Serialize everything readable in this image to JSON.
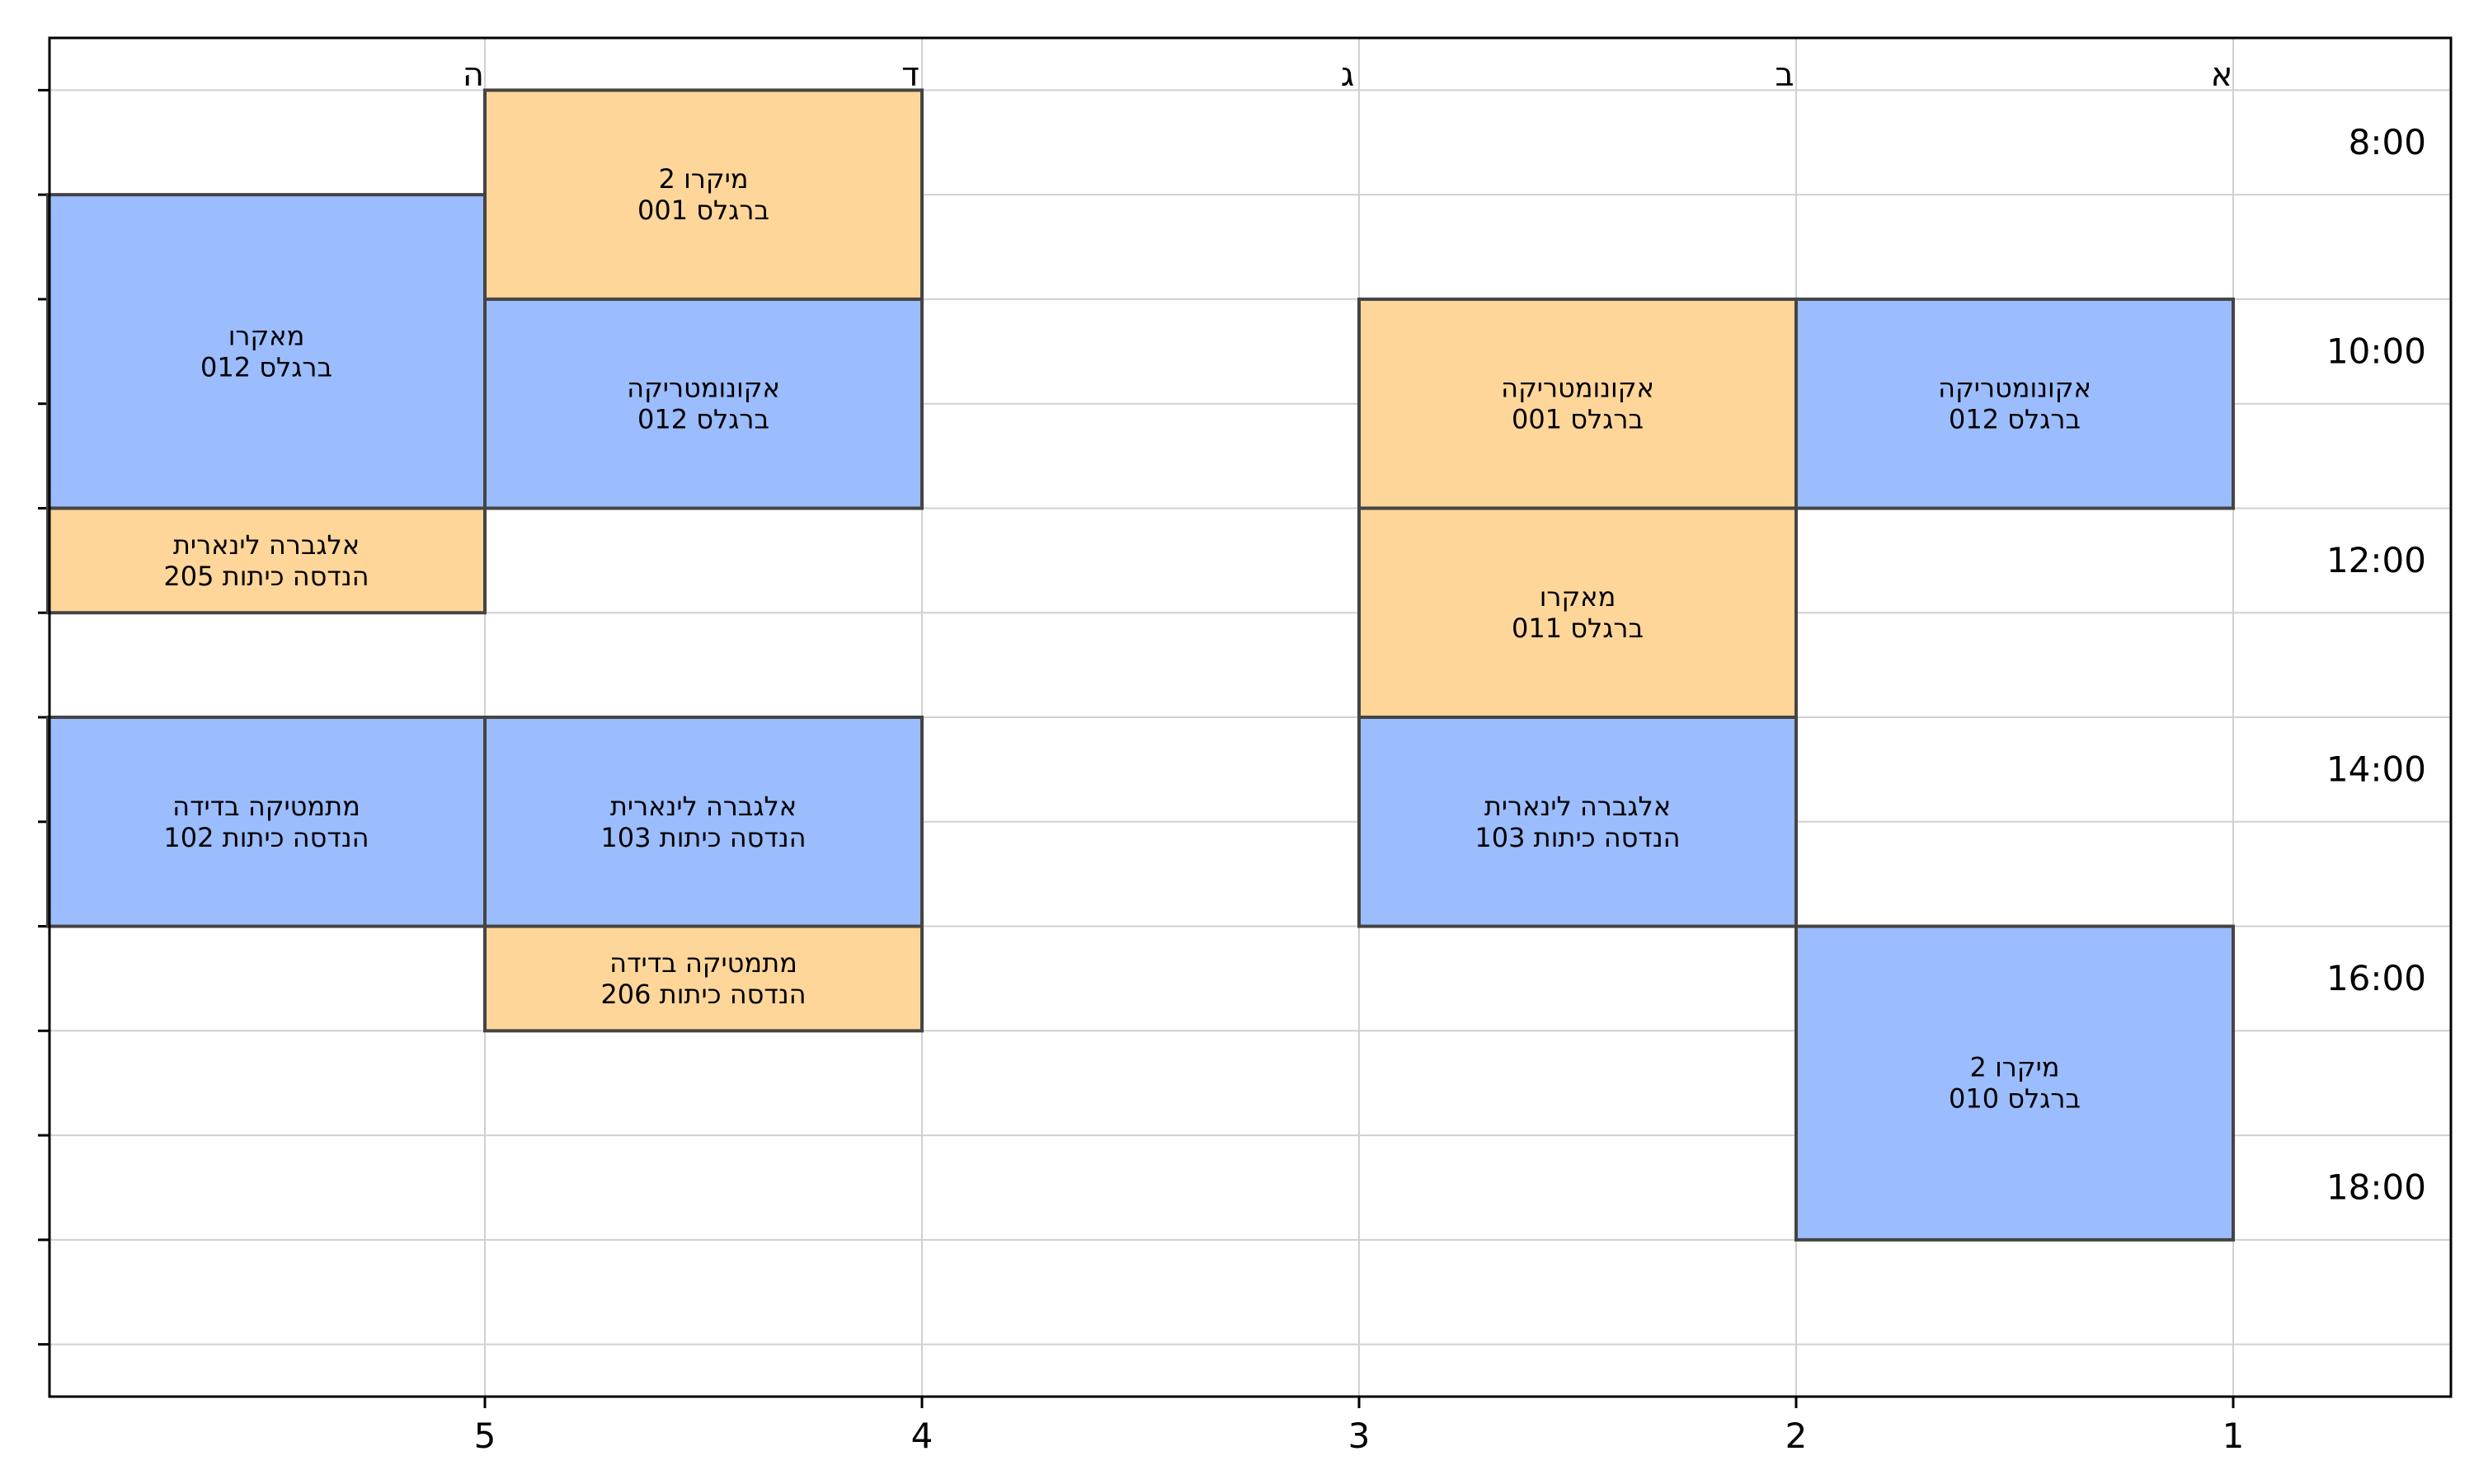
{
  "chart_data": {
    "type": "timetable",
    "day_headers": [
      "א",
      "ב",
      "ג",
      "ד",
      "ה"
    ],
    "x_ticks": [
      1,
      2,
      3,
      4,
      5
    ],
    "time_ticks": [
      "8:00",
      "10:00",
      "12:00",
      "14:00",
      "16:00",
      "18:00"
    ],
    "hour_range": [
      7.5,
      20.5
    ],
    "grid": true,
    "colors": {
      "blue": "#9bbcfd",
      "orange": "#fed699"
    },
    "events": [
      {
        "day": 1,
        "start": 10,
        "end": 12,
        "course": "אקונומטריקה",
        "room": "012 ברגלס",
        "color": "blue"
      },
      {
        "day": 1,
        "start": 16,
        "end": 19,
        "course": "מיקרו 2",
        "room": "010 ברגלס",
        "color": "blue"
      },
      {
        "day": 2,
        "start": 10,
        "end": 12,
        "course": "אקונומטריקה",
        "room": "001 ברגלס",
        "color": "orange"
      },
      {
        "day": 2,
        "start": 12,
        "end": 14,
        "course": "מאקרו",
        "room": "011 ברגלס",
        "color": "orange"
      },
      {
        "day": 2,
        "start": 14,
        "end": 16,
        "course": "אלגברה לינארית",
        "room": "103 הנדסה כיתות",
        "color": "blue"
      },
      {
        "day": 4,
        "start": 8,
        "end": 10,
        "course": "מיקרו 2",
        "room": "001 ברגלס",
        "color": "orange"
      },
      {
        "day": 4,
        "start": 10,
        "end": 12,
        "course": "אקונומטריקה",
        "room": "012 ברגלס",
        "color": "blue"
      },
      {
        "day": 4,
        "start": 14,
        "end": 16,
        "course": "אלגברה לינארית",
        "room": "103 הנדסה כיתות",
        "color": "blue"
      },
      {
        "day": 4,
        "start": 16,
        "end": 17,
        "course": "מתמטיקה בדידה",
        "room": "206 הנדסה כיתות",
        "color": "orange"
      },
      {
        "day": 5,
        "start": 9,
        "end": 12,
        "course": "מאקרו",
        "room": "012 ברגלס",
        "color": "blue"
      },
      {
        "day": 5,
        "start": 12,
        "end": 13,
        "course": "אלגברה לינארית",
        "room": "205 הנדסה כיתות",
        "color": "orange"
      },
      {
        "day": 5,
        "start": 14,
        "end": 16,
        "course": "מתמטיקה בדידה",
        "room": "102 הנדסה כיתות",
        "color": "blue"
      }
    ]
  }
}
